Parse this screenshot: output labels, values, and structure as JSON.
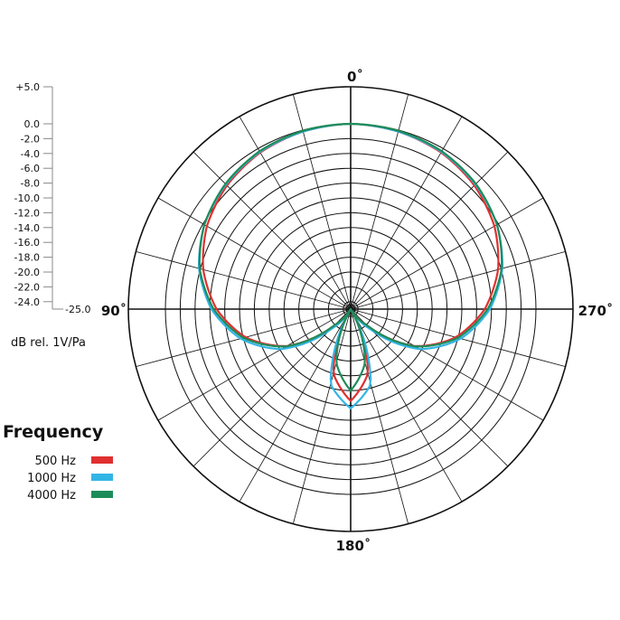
{
  "chart_data": {
    "type": "polar",
    "angle_labels": {
      "top": "0˚",
      "left": "90˚",
      "right": "270˚",
      "bottom": "180˚"
    },
    "radial_axis": {
      "label": "dB rel. 1V/Pa",
      "min": -25.0,
      "max": 5.0,
      "ticks": [
        "+5.0",
        "0.0",
        "-2.0",
        "-4.0",
        "-6.0",
        "-8.0",
        "-10.0",
        "-12.0",
        "-14.0",
        "-16.0",
        "-18.0",
        "-20.0",
        "-22.0",
        "-24.0",
        "-25.0"
      ],
      "tick_values": [
        5,
        0,
        -2,
        -4,
        -6,
        -8,
        -10,
        -12,
        -14,
        -16,
        -18,
        -20,
        -22,
        -24,
        -25
      ]
    },
    "legend": {
      "title": "Frequency",
      "entries": [
        {
          "label": "500 Hz",
          "color": "#e03030"
        },
        {
          "label": "1000 Hz",
          "color": "#33b5e5"
        },
        {
          "label": "4000 Hz",
          "color": "#1e8c5a"
        }
      ]
    },
    "series": [
      {
        "name": "500 Hz",
        "color": "#e03030",
        "rear_lobe_db": -12.6,
        "null_depth_db": -25,
        "angles_deg": [
          0,
          15,
          30,
          45,
          60,
          75,
          90,
          105,
          120,
          135,
          150,
          165,
          180
        ],
        "values_db": [
          0.0,
          -0.2,
          -0.6,
          -1.4,
          -2.6,
          -4.4,
          -6.9,
          -10.3,
          -15.0,
          -22.0,
          -25.0,
          -16.0,
          -12.6
        ]
      },
      {
        "name": "1000 Hz",
        "color": "#33b5e5",
        "rear_lobe_db": -11.6,
        "null_depth_db": -25,
        "angles_deg": [
          0,
          15,
          30,
          45,
          60,
          75,
          90,
          105,
          120,
          135,
          150,
          165,
          180
        ],
        "values_db": [
          0.0,
          -0.2,
          -0.5,
          -1.2,
          -2.2,
          -3.8,
          -6.2,
          -9.6,
          -14.2,
          -21.0,
          -25.0,
          -14.5,
          -11.6
        ]
      },
      {
        "name": "4000 Hz",
        "color": "#1e8c5a",
        "rear_lobe_db": -14.0,
        "null_depth_db": -25,
        "angles_deg": [
          0,
          15,
          30,
          45,
          60,
          75,
          90,
          105,
          120,
          135,
          150,
          165,
          180
        ],
        "values_db": [
          0.0,
          -0.1,
          -0.4,
          -1.1,
          -2.2,
          -3.9,
          -6.5,
          -10.0,
          -14.9,
          -22.0,
          -25.0,
          -17.5,
          -14.0
        ]
      }
    ],
    "grid": true
  }
}
